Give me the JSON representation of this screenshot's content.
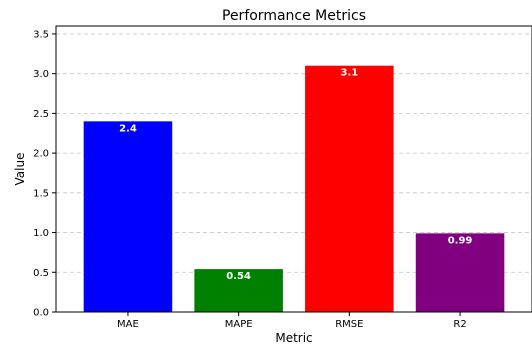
{
  "chart_data": {
    "type": "bar",
    "title": "Performance Metrics",
    "xlabel": "Metric",
    "ylabel": "Value",
    "categories": [
      "MAE",
      "MAPE",
      "RMSE",
      "R2"
    ],
    "values": [
      2.4,
      0.54,
      3.1,
      0.99
    ],
    "data_labels": [
      "2.4",
      "0.54",
      "3.1",
      "0.99"
    ],
    "colors": [
      "#0000ff",
      "#008000",
      "#ff0000",
      "#800080"
    ],
    "ylim": [
      0,
      3.6
    ],
    "yticks": [
      0.0,
      0.5,
      1.0,
      1.5,
      2.0,
      2.5,
      3.0,
      3.5
    ],
    "ytick_labels": [
      "0.0",
      "0.5",
      "1.0",
      "1.5",
      "2.0",
      "2.5",
      "3.0",
      "3.5"
    ],
    "grid": "y-dashed",
    "legend": "none"
  }
}
